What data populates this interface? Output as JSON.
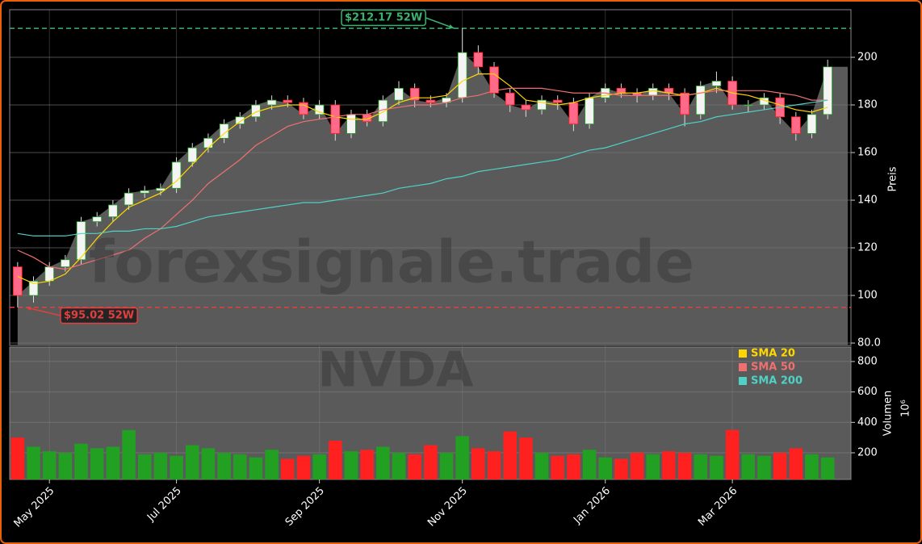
{
  "chart_data": {
    "type": "candlestick",
    "symbol": "NVDA",
    "watermark": "forexsignale.trade",
    "ylabel": "Preis",
    "categories": [
      null,
      null,
      "May 2025",
      null,
      null,
      null,
      null,
      null,
      null,
      null,
      "Jul 2025",
      null,
      null,
      null,
      null,
      null,
      null,
      null,
      null,
      "Sep 2025",
      null,
      null,
      null,
      null,
      null,
      null,
      null,
      null,
      "Nov 2025",
      null,
      null,
      null,
      null,
      null,
      null,
      null,
      null,
      "Jan 2026",
      null,
      null,
      null,
      null,
      null,
      null,
      null,
      "Mar 2026",
      null,
      null,
      null,
      null,
      null,
      null
    ],
    "open": [
      112,
      100,
      106,
      112,
      115,
      131,
      133,
      138,
      143,
      144,
      145,
      156,
      162,
      166,
      172,
      175,
      180,
      182,
      181,
      176,
      180,
      168,
      176,
      173,
      182,
      187,
      182,
      181,
      183,
      202,
      196,
      185,
      180,
      178,
      182,
      181,
      172,
      183,
      187,
      185,
      184,
      187,
      185,
      176,
      188,
      190,
      180,
      180,
      183,
      175,
      168,
      176
    ],
    "high": [
      114,
      108,
      114,
      117,
      133,
      135,
      140,
      145,
      146,
      147,
      158,
      164,
      168,
      174,
      177,
      182,
      184,
      184,
      183,
      182,
      182,
      178,
      178,
      184,
      190,
      189,
      184,
      185,
      212.17,
      205,
      198,
      187,
      182,
      184,
      184,
      183,
      185,
      189,
      189,
      187,
      189,
      189,
      187,
      190,
      194,
      192,
      182,
      185,
      185,
      177,
      178,
      199
    ],
    "low": [
      95.02,
      97,
      104,
      110,
      113,
      129,
      131,
      136,
      141,
      142,
      143,
      154,
      160,
      164,
      170,
      173,
      178,
      179,
      174,
      174,
      165,
      166,
      171,
      171,
      180,
      179,
      179,
      179,
      181,
      193,
      183,
      177,
      175,
      176,
      178,
      169,
      170,
      181,
      183,
      181,
      182,
      182,
      171,
      174,
      185,
      178,
      177,
      178,
      172,
      165,
      166,
      174
    ],
    "close": [
      100,
      106,
      112,
      115,
      131,
      133,
      138,
      143,
      144,
      145,
      156,
      162,
      166,
      172,
      175,
      180,
      182,
      181,
      176,
      180,
      168,
      176,
      173,
      182,
      187,
      182,
      181,
      183,
      202,
      196,
      185,
      180,
      178,
      182,
      181,
      172,
      183,
      187,
      185,
      184,
      187,
      185,
      176,
      188,
      190,
      180,
      180,
      183,
      175,
      168,
      176,
      196
    ],
    "up_color": "#22a022",
    "down_color": "#ff2020",
    "area_color": "#5a5a5a",
    "sma": [
      {
        "name": "SMA 20",
        "color": "#ffd700",
        "values": [
          108,
          105,
          106,
          109,
          116,
          124,
          131,
          137,
          140,
          143,
          148,
          155,
          162,
          168,
          173,
          177,
          179,
          180,
          180,
          177,
          175,
          174,
          174,
          177,
          181,
          183,
          183,
          184,
          190,
          193,
          193,
          188,
          182,
          181,
          180,
          181,
          183,
          184,
          185,
          185,
          186,
          185,
          184,
          185,
          187,
          185,
          184,
          182,
          180,
          178,
          177,
          179
        ]
      },
      {
        "name": "SMA 50",
        "color": "#f07070",
        "values": [
          119,
          116,
          112,
          111,
          113,
          115,
          117,
          119,
          124,
          128,
          134,
          140,
          147,
          152,
          157,
          163,
          167,
          171,
          173,
          174,
          175,
          176,
          176,
          178,
          179,
          180,
          180,
          181,
          183,
          184,
          186,
          187,
          187,
          187,
          186,
          185,
          185,
          185,
          184,
          184,
          184,
          184,
          184,
          185,
          186,
          186,
          186,
          186,
          185,
          184,
          182,
          182
        ]
      },
      {
        "name": "SMA 200",
        "color": "#4fd1c5",
        "values": [
          126,
          125,
          125,
          125,
          126,
          126,
          127,
          127,
          128,
          128,
          129,
          131,
          133,
          134,
          135,
          136,
          137,
          138,
          139,
          139,
          140,
          141,
          142,
          143,
          145,
          146,
          147,
          149,
          150,
          152,
          153,
          154,
          155,
          156,
          157,
          159,
          161,
          162,
          164,
          166,
          168,
          170,
          172,
          173,
          175,
          176,
          177,
          178,
          179,
          180,
          181,
          182
        ]
      }
    ],
    "ylim": [
      79,
      220
    ],
    "yticks": [
      {
        "value": 80,
        "label": "80.0"
      },
      100,
      120,
      140,
      160,
      180,
      200
    ],
    "high_52w": {
      "value": 212.17,
      "label": "$212.17 52W",
      "color": "#3cb371"
    },
    "low_52w": {
      "value": 95.02,
      "label": "$95.02 52W",
      "color": "#e04040"
    },
    "grid": true,
    "legend": "upper-right",
    "volume": {
      "label": "Volumen",
      "unit": "10⁶",
      "values": [
        300,
        240,
        210,
        200,
        260,
        230,
        240,
        350,
        190,
        200,
        180,
        250,
        230,
        200,
        190,
        170,
        220,
        160,
        180,
        190,
        280,
        210,
        220,
        240,
        200,
        190,
        250,
        200,
        310,
        230,
        210,
        340,
        300,
        200,
        180,
        190,
        220,
        170,
        160,
        200,
        190,
        210,
        200,
        190,
        180,
        350,
        190,
        180,
        200,
        230,
        190,
        170
      ],
      "ylim": [
        25,
        895
      ],
      "yticks": [
        200,
        400,
        600,
        800
      ]
    }
  }
}
